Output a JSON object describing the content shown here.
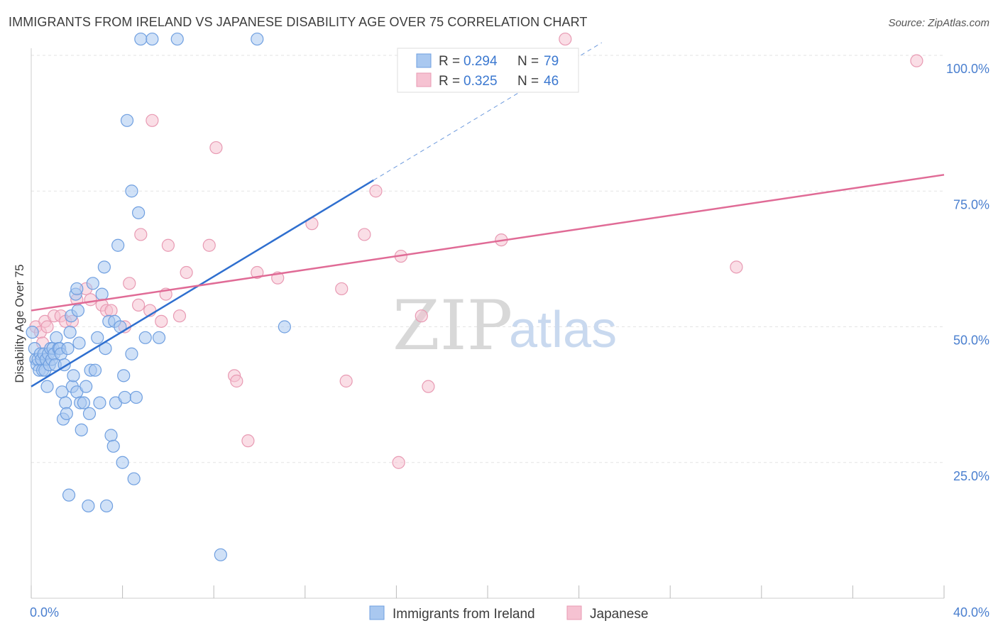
{
  "chart_data": {
    "type": "scatter",
    "title": "IMMIGRANTS FROM IRELAND VS JAPANESE DISABILITY AGE OVER 75 CORRELATION CHART",
    "source": "Source: ZipAtlas.com",
    "xlabel": "",
    "ylabel": "Disability Age Over 75",
    "xlim": [
      0,
      40
    ],
    "ylim": [
      0,
      105
    ],
    "x_tick_labels": [
      "0.0%",
      "40.0%"
    ],
    "y_ticks": [
      25,
      50,
      75,
      100
    ],
    "y_tick_labels": [
      "25.0%",
      "50.0%",
      "75.0%",
      "100.0%"
    ],
    "grid": true,
    "legend": {
      "position": "top-center",
      "entries": [
        {
          "r_label": "R =",
          "r_value": "0.294",
          "n_label": "N =",
          "n_value": "79"
        },
        {
          "r_label": "R =",
          "r_value": "0.325",
          "n_label": "N =",
          "n_value": "46"
        }
      ]
    },
    "watermark": {
      "zip": "ZIP",
      "atlas": "atlas"
    },
    "colors": {
      "blue_fill": "#a9c8f0",
      "blue_stroke": "#6f9fe0",
      "blue_line": "#2f6fcf",
      "pink_fill": "#f6c2d2",
      "pink_stroke": "#e89ab3",
      "pink_line": "#e06b96",
      "grid": "#e3e3e3",
      "axis": "#cccccc"
    },
    "series": [
      {
        "name": "Immigrants from Ireland",
        "trend": {
          "x0": 0,
          "y0": 39,
          "x1": 15,
          "y1": 77,
          "dash_to_x": 25
        },
        "points": [
          [
            0.05,
            49
          ],
          [
            0.15,
            46
          ],
          [
            0.2,
            44
          ],
          [
            0.25,
            43
          ],
          [
            0.3,
            44
          ],
          [
            0.35,
            42
          ],
          [
            0.4,
            45
          ],
          [
            0.45,
            44
          ],
          [
            0.5,
            42
          ],
          [
            0.55,
            45
          ],
          [
            0.6,
            42
          ],
          [
            0.65,
            44
          ],
          [
            0.7,
            39
          ],
          [
            0.75,
            45
          ],
          [
            0.8,
            43
          ],
          [
            0.85,
            46
          ],
          [
            0.9,
            44
          ],
          [
            0.95,
            46
          ],
          [
            1.0,
            45
          ],
          [
            1.05,
            43
          ],
          [
            1.1,
            48
          ],
          [
            1.2,
            46
          ],
          [
            1.25,
            46
          ],
          [
            1.3,
            45
          ],
          [
            1.35,
            38
          ],
          [
            1.4,
            33
          ],
          [
            1.45,
            43
          ],
          [
            1.5,
            36
          ],
          [
            1.55,
            34
          ],
          [
            1.6,
            46
          ],
          [
            1.65,
            19
          ],
          [
            1.7,
            49
          ],
          [
            1.75,
            52
          ],
          [
            1.8,
            39
          ],
          [
            1.85,
            41
          ],
          [
            1.95,
            56
          ],
          [
            2.0,
            38
          ],
          [
            2.05,
            53
          ],
          [
            2.1,
            47
          ],
          [
            2.15,
            36
          ],
          [
            2.2,
            31
          ],
          [
            2.3,
            36
          ],
          [
            2.4,
            39
          ],
          [
            2.5,
            17
          ],
          [
            2.55,
            34
          ],
          [
            2.6,
            42
          ],
          [
            2.7,
            58
          ],
          [
            2.8,
            42
          ],
          [
            2.9,
            48
          ],
          [
            3.0,
            36
          ],
          [
            3.1,
            56
          ],
          [
            3.2,
            61
          ],
          [
            3.25,
            46
          ],
          [
            3.3,
            17
          ],
          [
            3.4,
            51
          ],
          [
            3.5,
            30
          ],
          [
            3.6,
            28
          ],
          [
            3.65,
            51
          ],
          [
            3.7,
            36
          ],
          [
            3.8,
            65
          ],
          [
            4.0,
            25
          ],
          [
            4.05,
            41
          ],
          [
            4.1,
            37
          ],
          [
            4.2,
            88
          ],
          [
            4.4,
            45
          ],
          [
            4.5,
            22
          ],
          [
            4.6,
            37
          ],
          [
            4.7,
            71
          ],
          [
            4.8,
            103
          ],
          [
            5.0,
            48
          ],
          [
            5.3,
            103
          ],
          [
            5.6,
            48
          ],
          [
            6.4,
            103
          ],
          [
            8.3,
            8
          ],
          [
            9.9,
            103
          ],
          [
            11.1,
            50
          ],
          [
            4.4,
            75
          ],
          [
            3.9,
            50
          ],
          [
            2.0,
            57
          ]
        ]
      },
      {
        "name": "Japanese",
        "trend": {
          "x0": 0,
          "y0": 53,
          "x1": 40,
          "y1": 78
        },
        "points": [
          [
            0.2,
            50
          ],
          [
            0.4,
            49
          ],
          [
            0.5,
            47
          ],
          [
            0.6,
            51
          ],
          [
            0.7,
            50
          ],
          [
            1.0,
            52
          ],
          [
            1.3,
            52
          ],
          [
            1.5,
            51
          ],
          [
            1.8,
            51
          ],
          [
            2.0,
            55
          ],
          [
            2.4,
            57
          ],
          [
            2.6,
            55
          ],
          [
            3.1,
            54
          ],
          [
            3.3,
            53
          ],
          [
            3.5,
            53
          ],
          [
            4.1,
            50
          ],
          [
            4.3,
            58
          ],
          [
            4.7,
            54
          ],
          [
            4.8,
            67
          ],
          [
            5.2,
            53
          ],
          [
            5.3,
            88
          ],
          [
            5.7,
            51
          ],
          [
            5.9,
            56
          ],
          [
            6.0,
            65
          ],
          [
            6.5,
            52
          ],
          [
            6.8,
            60
          ],
          [
            7.8,
            65
          ],
          [
            8.1,
            83
          ],
          [
            8.9,
            41
          ],
          [
            9.0,
            40
          ],
          [
            9.5,
            29
          ],
          [
            9.9,
            60
          ],
          [
            10.8,
            59
          ],
          [
            12.3,
            69
          ],
          [
            13.6,
            57
          ],
          [
            13.8,
            40
          ],
          [
            14.6,
            67
          ],
          [
            15.1,
            75
          ],
          [
            16.1,
            25
          ],
          [
            16.2,
            63
          ],
          [
            17.1,
            52
          ],
          [
            17.4,
            39
          ],
          [
            20.6,
            66
          ],
          [
            23.4,
            103
          ],
          [
            30.9,
            61
          ],
          [
            38.8,
            99
          ]
        ]
      }
    ]
  }
}
